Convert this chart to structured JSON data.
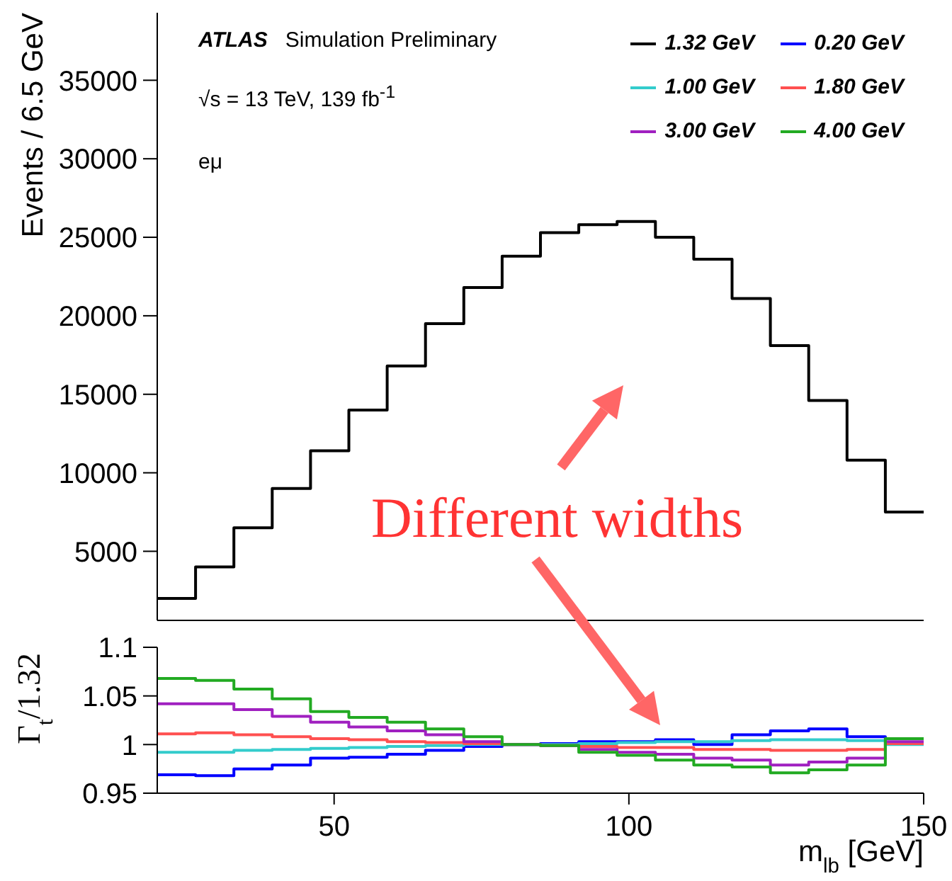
{
  "chart_data": [
    {
      "type": "histogram",
      "ylabel": "Events / 6.5 GeV",
      "bins": [
        20,
        26.5,
        33,
        39.5,
        46,
        52.5,
        59,
        65.5,
        72,
        78.5,
        85,
        91.5,
        98,
        104.5,
        111,
        117.5,
        124,
        130.5,
        137,
        143.5,
        150
      ],
      "xlim": [
        20,
        150
      ],
      "xticks": [
        50,
        100,
        150
      ],
      "ylim": [
        600,
        39300
      ],
      "yticks": [
        5000,
        10000,
        15000,
        20000,
        25000,
        30000,
        35000
      ],
      "tick_labels": "y",
      "legend": "top right",
      "annotations": [
        "ATLAS Simulation Preliminary",
        "√s = 13 TeV, 139 fb$^{-1}$",
        "eμ",
        "Different widths"
      ],
      "series": [
        {
          "name": "1.32 GeV",
          "color": "#000000",
          "values": [
            2000,
            4000,
            6500,
            9000,
            11400,
            14000,
            16800,
            19500,
            21800,
            23800,
            25300,
            25800,
            26000,
            25000,
            23600,
            21100,
            18100,
            14600,
            10800,
            7500
          ]
        }
      ]
    },
    {
      "type": "histogram",
      "xlabel": "m$_{lb}$ [GeV]",
      "ylabel": "Γ$_{t}$/1.32",
      "bins": [
        20,
        26.5,
        33,
        39.5,
        46,
        52.5,
        59,
        65.5,
        72,
        78.5,
        85,
        91.5,
        98,
        104.5,
        111,
        117.5,
        124,
        130.5,
        137,
        143.5,
        150
      ],
      "xlim": [
        20,
        150
      ],
      "xticks": [
        50,
        100,
        150
      ],
      "ylim": [
        0.95,
        1.1
      ],
      "yticks": [
        0.95,
        1,
        1.05,
        1.1
      ],
      "series": [
        {
          "name": "0.20 GeV",
          "color": "#0000ff",
          "values": [
            0.969,
            0.968,
            0.975,
            0.979,
            0.986,
            0.987,
            0.99,
            0.994,
            0.998,
            1.0,
            1.001,
            1.003,
            1.003,
            1.005,
            1.0,
            1.01,
            1.014,
            1.016,
            1.008,
            1.002
          ]
        },
        {
          "name": "1.00 GeV",
          "color": "#33cccc",
          "values": [
            0.992,
            0.992,
            0.994,
            0.995,
            0.996,
            0.997,
            0.998,
            0.999,
            1.0,
            1.0,
            1.0,
            1.001,
            1.002,
            1.003,
            1.003,
            1.004,
            1.005,
            1.005,
            1.004,
            1.0
          ]
        },
        {
          "name": "1.80 GeV",
          "color": "#ff5050",
          "values": [
            1.011,
            1.012,
            1.01,
            1.008,
            1.006,
            1.005,
            1.003,
            1.002,
            1.001,
            1.0,
            0.999,
            0.998,
            0.997,
            0.997,
            0.995,
            0.995,
            0.994,
            0.994,
            0.995,
            1.001
          ]
        },
        {
          "name": "3.00 GeV",
          "color": "#a020c0",
          "values": [
            1.042,
            1.042,
            1.036,
            1.029,
            1.023,
            1.018,
            1.014,
            1.01,
            1.003,
            1.0,
            0.999,
            0.995,
            0.992,
            0.99,
            0.986,
            0.984,
            0.979,
            0.982,
            0.986,
            1.003
          ]
        },
        {
          "name": "4.00 GeV",
          "color": "#22aa22",
          "values": [
            1.068,
            1.066,
            1.057,
            1.047,
            1.034,
            1.028,
            1.023,
            1.016,
            1.008,
            1.0,
            0.999,
            0.992,
            0.989,
            0.984,
            0.979,
            0.977,
            0.971,
            0.974,
            0.979,
            1.006
          ]
        }
      ]
    }
  ]
}
